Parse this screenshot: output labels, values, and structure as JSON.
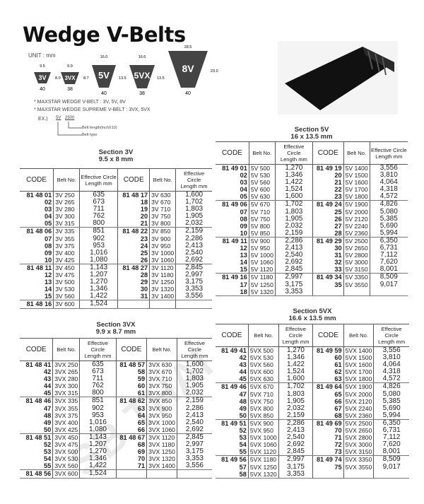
{
  "title": "Wedge V-Belts",
  "unit": "UNIT : mm",
  "profiles": [
    {
      "name": "3V",
      "top": "9.5",
      "height": "8.0",
      "angle": "40"
    },
    {
      "name": "3VX",
      "top": "9.9",
      "height": "8.7",
      "angle": "38"
    },
    {
      "name": "5V",
      "top": "16.0",
      "height": "13.5",
      "angle": "40"
    },
    {
      "name": "5VX",
      "top": "16.6",
      "height": "13.5",
      "angle": "38"
    },
    {
      "name": "8V",
      "top": "28.5",
      "height": "23.0",
      "angle": "40"
    }
  ],
  "notes": [
    "* MAXSTAR WEDGE V-BELT : 3V, 5V, 8V",
    "* MAXSTAR WEDGE SUPREME V-BELT : 3VX, 5VX"
  ],
  "example": {
    "label": "EX.)",
    "type": "5V",
    "length": "2500",
    "length_desc": "Belt length(inchX10)",
    "type_desc": "Belt type"
  },
  "headers": {
    "code": "CODE",
    "belt": "Belt No.",
    "len1": "Effective Circle",
    "len2": "Length mm"
  },
  "watermark": "SB THAI",
  "tables": {
    "s3v": {
      "title": "Section 3V",
      "dims": "9.5 x 8 mm",
      "groups": [
        [
          [
            "81 48 01",
            "3V  250",
            "635",
            "81 48 17",
            "3V  630",
            "1,600"
          ],
          [
            "02",
            "3V  265",
            "673",
            "18",
            "3V  670",
            "1,702"
          ],
          [
            "03",
            "3V  280",
            "711",
            "19",
            "3V  710",
            "1,803"
          ],
          [
            "04",
            "3V  300",
            "762",
            "20",
            "3V  750",
            "1,905"
          ],
          [
            "05",
            "3V  315",
            "800",
            "21",
            "3V  800",
            "2,032"
          ]
        ],
        [
          [
            "81 48 06",
            "3V  335",
            "851",
            "81 48 22",
            "3V  850",
            "2,159"
          ],
          [
            "07",
            "3V  355",
            "902",
            "23",
            "3V  900",
            "2,286"
          ],
          [
            "08",
            "3V  375",
            "953",
            "24",
            "3V  950",
            "2,413"
          ],
          [
            "09",
            "3V  400",
            "1,016",
            "25",
            "3V 1000",
            "2,540"
          ],
          [
            "10",
            "3V  425",
            "1,080",
            "26",
            "3V 1060",
            "2,692"
          ]
        ],
        [
          [
            "81 48 11",
            "3V  450",
            "1,143",
            "81 48 27",
            "3V 1120",
            "2,845"
          ],
          [
            "12",
            "3V  475",
            "1,207",
            "28",
            "3V 1180",
            "2,997"
          ],
          [
            "13",
            "3V  500",
            "1,270",
            "29",
            "3V 1250",
            "3,175"
          ],
          [
            "14",
            "3V  530",
            "1,346",
            "30",
            "3V 1320",
            "3,353"
          ],
          [
            "15",
            "3V  560",
            "1,422",
            "31",
            "3V 1400",
            "3,556"
          ]
        ],
        [
          [
            "81 48 16",
            "3V  600",
            "1,524",
            "",
            "",
            ""
          ]
        ]
      ]
    },
    "s5v": {
      "title": "Section 5V",
      "dims": "16 x 13.5 mm",
      "groups": [
        [
          [
            "81 49 01",
            "5V  500",
            "1,270",
            "81 49 19",
            "5V 1400",
            "3,556"
          ],
          [
            "02",
            "5V  530",
            "1,346",
            "20",
            "5V 1500",
            "3,810"
          ],
          [
            "03",
            "5V  560",
            "1,422",
            "21",
            "5V 1600",
            "4,064"
          ],
          [
            "04",
            "5V  600",
            "1,524",
            "22",
            "5V 1700",
            "4,318"
          ],
          [
            "05",
            "5V  630",
            "1,600",
            "23",
            "5V 1800",
            "4,572"
          ]
        ],
        [
          [
            "81 49 06",
            "5V  670",
            "1,702",
            "81 49 24",
            "5V 1900",
            "4,826"
          ],
          [
            "07",
            "5V  710",
            "1,803",
            "25",
            "5V 2000",
            "5,080"
          ],
          [
            "08",
            "5V  750",
            "1,905",
            "26",
            "5V 2120",
            "5,385"
          ],
          [
            "09",
            "5V  800",
            "2,032",
            "27",
            "5V 2240",
            "5,690"
          ],
          [
            "10",
            "5V  850",
            "2,159",
            "28",
            "5V 2360",
            "5,994"
          ]
        ],
        [
          [
            "81 49 11",
            "5V  900",
            "2,286",
            "81 49 29",
            "5V 2500",
            "6,350"
          ],
          [
            "12",
            "5V  950",
            "2,413",
            "30",
            "5V 2650",
            "6,731"
          ],
          [
            "13",
            "5V 1000",
            "2,540",
            "31",
            "5V 2800",
            "7,112"
          ],
          [
            "14",
            "5V 1060",
            "2,692",
            "32",
            "5V 3000",
            "7,620"
          ],
          [
            "15",
            "5V 1120",
            "2,845",
            "33",
            "5V 3150",
            "8,001"
          ]
        ],
        [
          [
            "81 49 16",
            "5V 1180",
            "2,997",
            "81 49 34",
            "5V 3350",
            "8,509"
          ],
          [
            "17",
            "5V 1250",
            "3,175",
            "35",
            "5V 3550",
            "9,017"
          ],
          [
            "18",
            "5V 1320",
            "3,353",
            "",
            "",
            ""
          ]
        ]
      ]
    },
    "s3vx": {
      "title": "Section 3VX",
      "dims": "9.9 x 8.7 mm",
      "groups": [
        [
          [
            "81 48 41",
            "3VX 250",
            "635",
            "81 48 57",
            "3VX 630",
            "1,600"
          ],
          [
            "42",
            "3VX 265",
            "673",
            "58",
            "3VX 670",
            "1,702"
          ],
          [
            "43",
            "3VX 280",
            "711",
            "59",
            "3VX 710",
            "1,803"
          ],
          [
            "44",
            "3VX 300",
            "762",
            "60",
            "3VX 750",
            "1,905"
          ],
          [
            "45",
            "3VX 315",
            "800",
            "61",
            "3VX 800",
            "2,032"
          ]
        ],
        [
          [
            "81 48 46",
            "3VX 335",
            "851",
            "81 48 62",
            "3VX 850",
            "2,159"
          ],
          [
            "47",
            "3VX 355",
            "902",
            "63",
            "3VX 900",
            "2,286"
          ],
          [
            "48",
            "3VX 375",
            "953",
            "64",
            "3VX 950",
            "2,413"
          ],
          [
            "49",
            "3VX 400",
            "1,016",
            "65",
            "3VX 1000",
            "2,540"
          ],
          [
            "50",
            "3VX 425",
            "1,080",
            "66",
            "3VX 1060",
            "2,692"
          ]
        ],
        [
          [
            "81 48 51",
            "3VX 450",
            "1,143",
            "81 48 67",
            "3VX 1120",
            "2,845"
          ],
          [
            "52",
            "3VX 475",
            "1,207",
            "68",
            "3VX 1180",
            "2,997"
          ],
          [
            "53",
            "3VX 500",
            "1,270",
            "69",
            "3VX 1250",
            "3,175"
          ],
          [
            "54",
            "3VX 530",
            "1,346",
            "70",
            "3VX 1320",
            "3,353"
          ],
          [
            "55",
            "3VX 560",
            "1,422",
            "71",
            "3VX 1400",
            "3,556"
          ]
        ],
        [
          [
            "81 48 56",
            "3VX 600",
            "1,524",
            "",
            "",
            ""
          ]
        ]
      ]
    },
    "s5vx": {
      "title": "Section 5VX",
      "dims": "16.6 x 13.5 mm",
      "groups": [
        [
          [
            "81 49 41",
            "5VX 500",
            "1,270",
            "81 49 59",
            "5VX 1400",
            "3,556"
          ],
          [
            "42",
            "5VX 530",
            "1,346",
            "60",
            "5VX 1500",
            "3,810"
          ],
          [
            "43",
            "5VX 560",
            "1,422",
            "61",
            "5VX 1600",
            "4,064"
          ],
          [
            "44",
            "5VX 600",
            "1,524",
            "62",
            "5VX 1700",
            "4,318"
          ],
          [
            "45",
            "5VX 630",
            "1,600",
            "63",
            "5VX 1800",
            "4,572"
          ]
        ],
        [
          [
            "81 49 46",
            "5VX 670",
            "1,702",
            "81 49 64",
            "5VX 1900",
            "4,826"
          ],
          [
            "47",
            "5VX 710",
            "1,803",
            "65",
            "5VX 2000",
            "5,080"
          ],
          [
            "48",
            "5VX 750",
            "1,905",
            "66",
            "5VX 2120",
            "5,385"
          ],
          [
            "49",
            "5VX 800",
            "2,032",
            "67",
            "5VX 2240",
            "5,690"
          ],
          [
            "50",
            "5VX 850",
            "2,159",
            "68",
            "5VX 2360",
            "5,994"
          ]
        ],
        [
          [
            "81 49 51",
            "5VX 900",
            "2,286",
            "81 49 69",
            "5VX 2500",
            "6,350"
          ],
          [
            "52",
            "5VX 950",
            "2,413",
            "70",
            "5VX 2650",
            "6,731"
          ],
          [
            "53",
            "5VX 1000",
            "2,540",
            "71",
            "5VX 2800",
            "7,112"
          ],
          [
            "54",
            "5VX 1060",
            "2,692",
            "72",
            "5VX 3000",
            "7,620"
          ],
          [
            "55",
            "5VX 1120",
            "2,845",
            "73",
            "5VX 3150",
            "8,001"
          ]
        ],
        [
          [
            "81 49 56",
            "5VX 1180",
            "2,997",
            "81 49 74",
            "5VX 3350",
            "8,509"
          ],
          [
            "57",
            "5VX 1250",
            "3,175",
            "75",
            "5VX 3550",
            "9,017"
          ],
          [
            "58",
            "5VX 1320",
            "3,353",
            "",
            "",
            ""
          ]
        ]
      ]
    }
  }
}
